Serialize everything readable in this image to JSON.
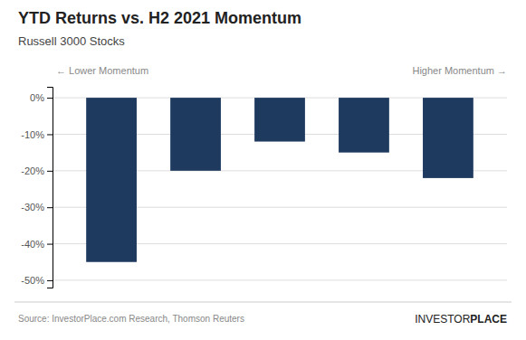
{
  "chart_data": {
    "type": "bar",
    "title": "YTD Returns vs. H2 2021 Momentum",
    "subtitle": "Russell 3000 Stocks",
    "annotations": [
      "← Lower Momentum",
      "Higher Momentum →"
    ],
    "source": "Source: InvestorPlace.com Research, Thomson Reuters",
    "logo": [
      "INVESTOR",
      "PLACE"
    ],
    "categories": [
      null,
      null,
      null,
      null,
      null
    ],
    "values": [
      -45,
      -20,
      -12,
      -15,
      -22
    ],
    "color": "#1e3a5f",
    "ylim": [
      -52,
      3
    ],
    "yticks": [
      {
        "value": 0,
        "label": "0%"
      },
      {
        "value": -10,
        "label": "-10%"
      },
      {
        "value": -20,
        "label": "-20%"
      },
      {
        "value": -30,
        "label": "-30%"
      },
      {
        "value": -40,
        "label": "-40%"
      },
      {
        "value": -50,
        "label": "-50%"
      }
    ],
    "grid": true,
    "tick_labels": "y"
  }
}
